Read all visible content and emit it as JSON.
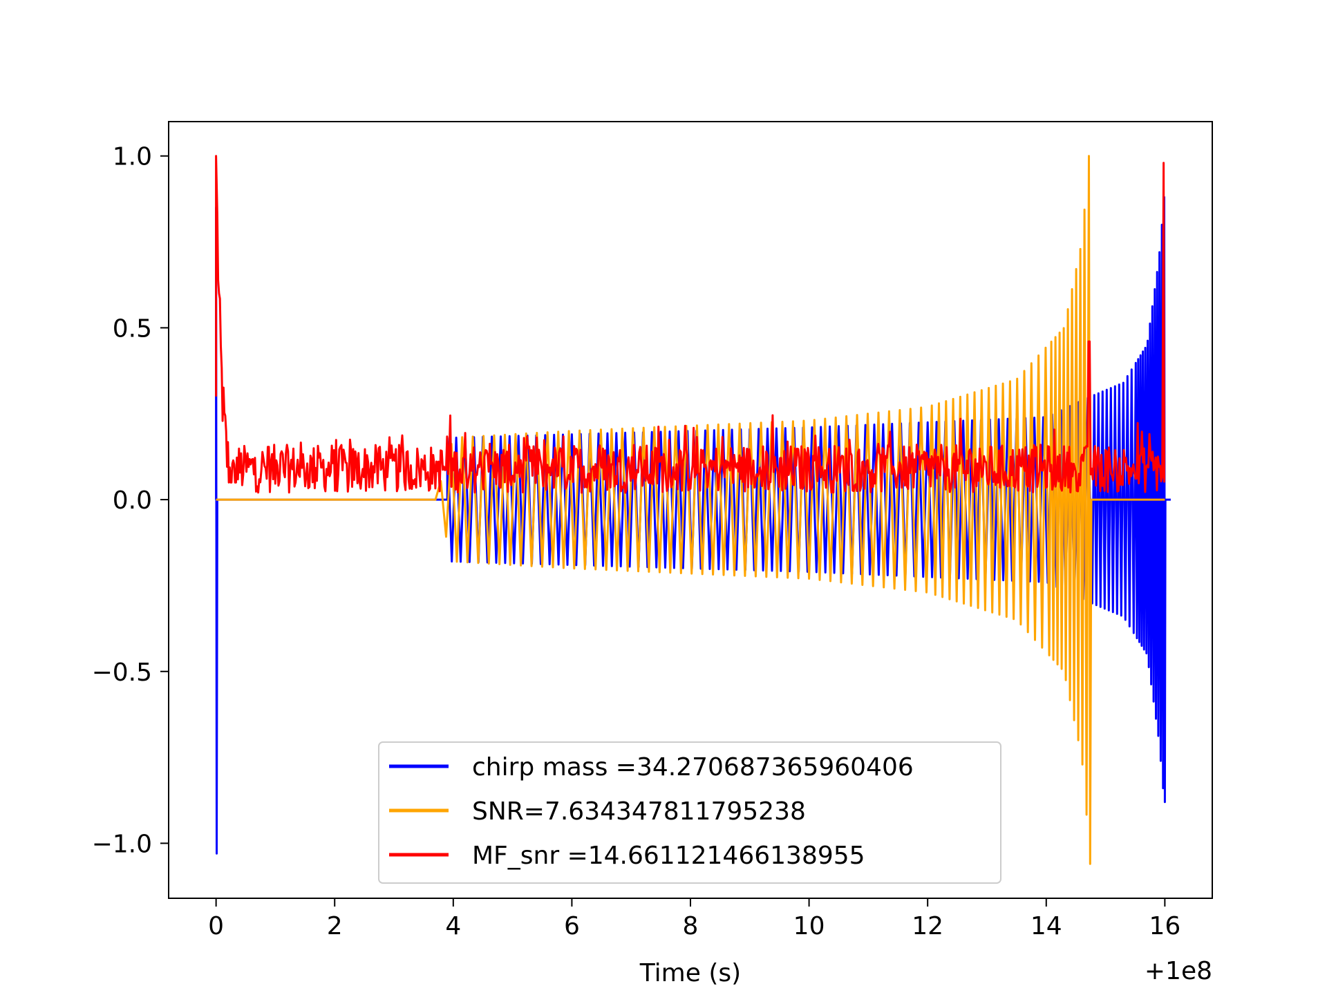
{
  "chart_data": {
    "type": "line",
    "title": "",
    "xlabel": "Time (s)",
    "ylabel": "",
    "x_offset_label": "+1e8",
    "xlim": [
      -0.8,
      16.8
    ],
    "ylim": [
      -1.16,
      1.1
    ],
    "xticks": [
      0,
      2,
      4,
      6,
      8,
      10,
      12,
      14,
      16
    ],
    "xtick_labels": [
      "0",
      "2",
      "4",
      "6",
      "8",
      "10",
      "12",
      "14",
      "16"
    ],
    "yticks": [
      -1.0,
      -0.5,
      0.0,
      0.5,
      1.0
    ],
    "ytick_labels": [
      "−1.0",
      "−0.5",
      "0.0",
      "0.5",
      "1.0"
    ],
    "grid": false,
    "legend_position": "lower-center",
    "series": [
      {
        "name": "chirp mass =34.270687365960406",
        "color": "#0000ff",
        "description_points": {
          "spike_at_start": {
            "x": 0.0,
            "y_max": 0.85,
            "y_min": -1.03
          },
          "envelope": [
            {
              "x": 4.0,
              "amp": 0.18
            },
            {
              "x": 6.0,
              "amp": 0.19
            },
            {
              "x": 10.0,
              "amp": 0.21
            },
            {
              "x": 14.0,
              "amp": 0.24
            },
            {
              "x": 14.75,
              "amp": 0.3
            },
            {
              "x": 15.3,
              "amp": 0.34
            },
            {
              "x": 15.7,
              "amp": 0.45
            },
            {
              "x": 15.9,
              "amp": 0.7
            },
            {
              "x": 16.0,
              "amp": 0.9
            }
          ],
          "end_min": -0.88
        }
      },
      {
        "name": "SNR=7.634347811795238",
        "color": "#ffa500",
        "description_points": {
          "start_oscillation": 3.7,
          "envelope": [
            {
              "x": 3.7,
              "amp": 0.0
            },
            {
              "x": 4.0,
              "amp": 0.18
            },
            {
              "x": 6.0,
              "amp": 0.2
            },
            {
              "x": 10.0,
              "amp": 0.23
            },
            {
              "x": 12.0,
              "amp": 0.27
            },
            {
              "x": 13.5,
              "amp": 0.35
            },
            {
              "x": 14.3,
              "amp": 0.5
            },
            {
              "x": 14.6,
              "amp": 0.75
            },
            {
              "x": 14.72,
              "amp": 1.0
            }
          ],
          "peak_max": 1.0,
          "peak_min": -1.06
        }
      },
      {
        "name": "MF_snr =14.661121466138955",
        "color": "#ff0000",
        "description_points": {
          "start_peak": {
            "x": 0.0,
            "y": 1.0
          },
          "decay_to": {
            "x": 0.3,
            "y": 0.15
          },
          "noise_range": [
            0.0,
            0.24
          ],
          "peak_near_14_7": {
            "x": 14.72,
            "y": 0.46
          },
          "end_peak": {
            "x": 15.98,
            "y": 0.98
          }
        }
      }
    ]
  }
}
